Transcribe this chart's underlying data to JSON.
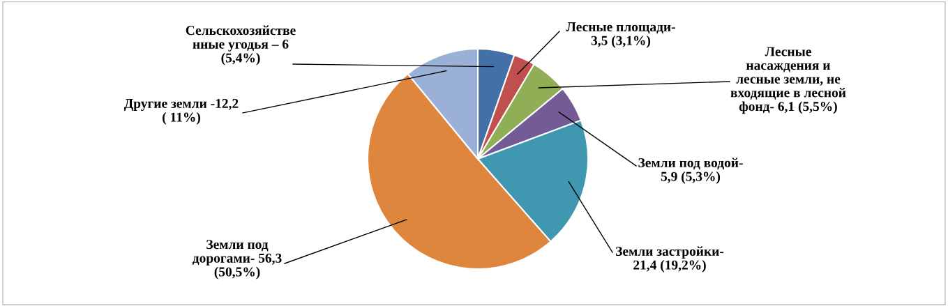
{
  "chart_data": {
    "type": "pie",
    "categories": [
      "Сельскохозяйстве\nнные угодья – 6\n(5,4%)",
      "Лесные площади-\n3,5 (3,1%)",
      "Лесные\nнасаждения и\nлесные земли, не\nвходящие в лесной\nфонд- 6,1 (5,5%)",
      "Земли под водой-\n5,9 (5,3%)",
      "Земли застройки-\n21,4 (19,2%)",
      "Земли под\nдорогами- 56,3\n(50,5%)",
      "Другие земли -12,2\n( 11%)"
    ],
    "values": [
      6,
      3.5,
      6.1,
      5.9,
      21.4,
      56.3,
      12.2
    ],
    "colors": [
      "#4470a8",
      "#c0504d",
      "#8fae55",
      "#735c96",
      "#3f98b0",
      "#de853e",
      "#9bb0d6"
    ],
    "legend": false
  }
}
